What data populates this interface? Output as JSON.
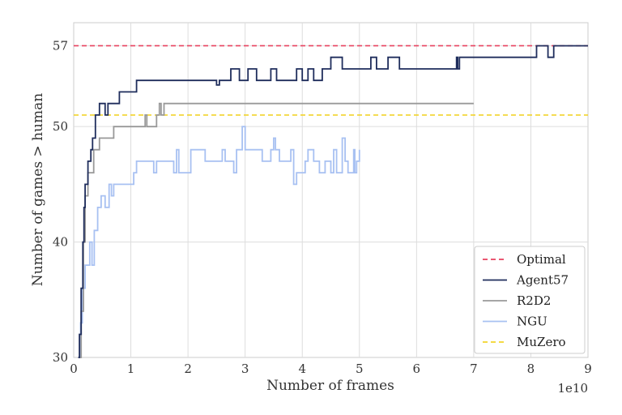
{
  "chart_data": {
    "type": "line",
    "xlabel": "Number of frames",
    "ylabel": "Number of games > human",
    "x_multiplier_label": "1e10",
    "x_unit_scale": 10000000000,
    "xlim": [
      0,
      9
    ],
    "ylim": [
      30,
      59
    ],
    "xticks": [
      "0",
      "1",
      "2",
      "3",
      "4",
      "5",
      "6",
      "7",
      "8",
      "9"
    ],
    "yticks": [
      "30",
      "40",
      "50",
      "57"
    ],
    "grid": true,
    "legend_position": "lower-right",
    "hlines": [
      {
        "name": "Optimal",
        "y": 57,
        "color": "#e8415f",
        "dash": true
      },
      {
        "name": "MuZero",
        "y": 51,
        "color": "#f2d42b",
        "dash": true
      }
    ],
    "series": [
      {
        "name": "Agent57",
        "color": "#1f2d5c",
        "step": true,
        "points": [
          [
            0.08,
            30
          ],
          [
            0.1,
            32
          ],
          [
            0.13,
            36
          ],
          [
            0.16,
            40
          ],
          [
            0.18,
            43
          ],
          [
            0.2,
            45
          ],
          [
            0.25,
            47
          ],
          [
            0.3,
            48
          ],
          [
            0.33,
            49
          ],
          [
            0.38,
            51
          ],
          [
            0.45,
            52
          ],
          [
            0.55,
            51
          ],
          [
            0.6,
            52
          ],
          [
            0.8,
            53
          ],
          [
            1.0,
            53
          ],
          [
            1.1,
            54
          ],
          [
            2.5,
            54
          ],
          [
            2.5,
            53.6
          ],
          [
            2.55,
            54
          ],
          [
            2.7,
            54
          ],
          [
            2.75,
            55
          ],
          [
            2.9,
            54
          ],
          [
            3.05,
            55
          ],
          [
            3.2,
            54
          ],
          [
            3.45,
            55
          ],
          [
            3.55,
            54
          ],
          [
            3.9,
            55
          ],
          [
            4.0,
            54
          ],
          [
            4.1,
            55
          ],
          [
            4.2,
            54
          ],
          [
            4.35,
            55
          ],
          [
            4.5,
            56
          ],
          [
            4.7,
            55
          ],
          [
            5.1,
            55
          ],
          [
            5.2,
            56
          ],
          [
            5.3,
            55
          ],
          [
            5.5,
            56
          ],
          [
            5.7,
            55
          ],
          [
            6.7,
            56
          ],
          [
            6.72,
            55
          ],
          [
            6.75,
            56
          ],
          [
            8.1,
            57
          ],
          [
            8.3,
            56
          ],
          [
            8.4,
            57
          ],
          [
            9.0,
            57
          ]
        ]
      },
      {
        "name": "R2D2",
        "color": "#999999",
        "step": true,
        "points": [
          [
            0.1,
            30
          ],
          [
            0.13,
            34
          ],
          [
            0.17,
            40
          ],
          [
            0.2,
            44
          ],
          [
            0.25,
            46
          ],
          [
            0.35,
            48
          ],
          [
            0.45,
            49
          ],
          [
            0.7,
            50
          ],
          [
            1.25,
            51
          ],
          [
            1.28,
            50
          ],
          [
            1.45,
            51
          ],
          [
            1.5,
            52
          ],
          [
            1.53,
            51
          ],
          [
            1.58,
            52
          ],
          [
            7.0,
            52
          ]
        ]
      },
      {
        "name": "NGU",
        "color": "#a8c1f2",
        "step": true,
        "points": [
          [
            0.1,
            30
          ],
          [
            0.12,
            33
          ],
          [
            0.15,
            36
          ],
          [
            0.2,
            38
          ],
          [
            0.28,
            40
          ],
          [
            0.32,
            38
          ],
          [
            0.36,
            41
          ],
          [
            0.42,
            43
          ],
          [
            0.48,
            44
          ],
          [
            0.55,
            43
          ],
          [
            0.62,
            45
          ],
          [
            0.66,
            44
          ],
          [
            0.7,
            45
          ],
          [
            1.05,
            46
          ],
          [
            1.1,
            47
          ],
          [
            1.4,
            46
          ],
          [
            1.45,
            47
          ],
          [
            1.75,
            46
          ],
          [
            1.8,
            48
          ],
          [
            1.84,
            46
          ],
          [
            2.0,
            46
          ],
          [
            2.05,
            48
          ],
          [
            2.3,
            47
          ],
          [
            2.6,
            48
          ],
          [
            2.65,
            47
          ],
          [
            2.8,
            46
          ],
          [
            2.85,
            48
          ],
          [
            2.95,
            50
          ],
          [
            3.0,
            48
          ],
          [
            3.2,
            48
          ],
          [
            3.3,
            47
          ],
          [
            3.45,
            48
          ],
          [
            3.5,
            49
          ],
          [
            3.53,
            48
          ],
          [
            3.6,
            47
          ],
          [
            3.8,
            48
          ],
          [
            3.85,
            45
          ],
          [
            3.9,
            46
          ],
          [
            4.05,
            47
          ],
          [
            4.1,
            48
          ],
          [
            4.2,
            47
          ],
          [
            4.3,
            46
          ],
          [
            4.4,
            47
          ],
          [
            4.5,
            46
          ],
          [
            4.55,
            48
          ],
          [
            4.6,
            46
          ],
          [
            4.7,
            49
          ],
          [
            4.75,
            47
          ],
          [
            4.8,
            46
          ],
          [
            4.9,
            48
          ],
          [
            4.92,
            46
          ],
          [
            4.95,
            47
          ],
          [
            5.0,
            48
          ]
        ]
      }
    ],
    "legend": [
      "Optimal",
      "Agent57",
      "R2D2",
      "NGU",
      "MuZero"
    ]
  }
}
